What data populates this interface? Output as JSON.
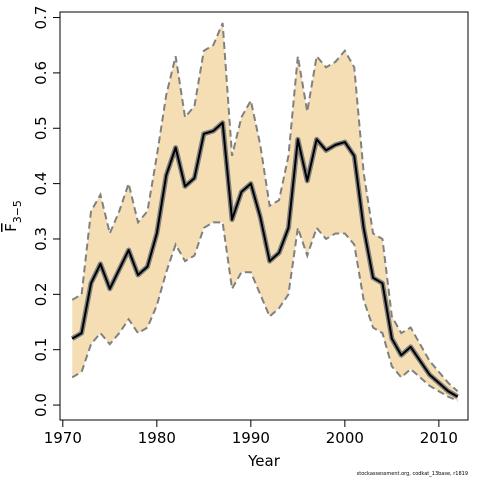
{
  "chart_data": {
    "type": "line",
    "title": "",
    "xlabel": "Year",
    "ylabel": "F",
    "ylabel_subscript": "3−5",
    "xlim": [
      1970,
      2012
    ],
    "ylim": [
      0,
      0.7
    ],
    "x_ticks": [
      "1970",
      "1980",
      "1990",
      "2000",
      "2010"
    ],
    "y_ticks": [
      "0.0",
      "0.1",
      "0.2",
      "0.3",
      "0.4",
      "0.5",
      "0.6",
      "0.7"
    ],
    "grid": false,
    "legend": "none",
    "colors": {
      "band": "#f5deb3",
      "bound_line": "#808080",
      "estimate_line": "#000000"
    },
    "x": [
      1971,
      1972,
      1973,
      1974,
      1975,
      1976,
      1977,
      1978,
      1979,
      1980,
      1981,
      1982,
      1983,
      1984,
      1985,
      1986,
      1987,
      1988,
      1989,
      1990,
      1991,
      1992,
      1993,
      1994,
      1995,
      1996,
      1997,
      1998,
      1999,
      2000,
      2001,
      2002,
      2003,
      2004,
      2005,
      2006,
      2007,
      2008,
      2009,
      2010,
      2011,
      2012
    ],
    "series": [
      {
        "values": [
          0.12,
          0.13,
          0.22,
          0.255,
          0.21,
          0.245,
          0.28,
          0.235,
          0.25,
          0.31,
          0.415,
          0.465,
          0.395,
          0.41,
          0.49,
          0.495,
          0.51,
          0.335,
          0.385,
          0.4,
          0.34,
          0.26,
          0.275,
          0.32,
          0.48,
          0.405,
          0.48,
          0.46,
          0.47,
          0.475,
          0.45,
          0.32,
          0.23,
          0.22,
          0.12,
          0.09,
          0.105,
          0.08,
          0.055,
          0.04,
          0.025,
          0.015
        ]
      },
      {
        "values": [
          0.19,
          0.2,
          0.35,
          0.38,
          0.31,
          0.35,
          0.4,
          0.33,
          0.35,
          0.45,
          0.56,
          0.63,
          0.52,
          0.54,
          0.64,
          0.65,
          0.69,
          0.45,
          0.52,
          0.55,
          0.47,
          0.36,
          0.37,
          0.45,
          0.63,
          0.53,
          0.63,
          0.61,
          0.62,
          0.64,
          0.61,
          0.42,
          0.31,
          0.3,
          0.16,
          0.13,
          0.14,
          0.11,
          0.08,
          0.06,
          0.04,
          0.025
        ]
      },
      {
        "values": [
          0.05,
          0.06,
          0.11,
          0.13,
          0.11,
          0.13,
          0.155,
          0.13,
          0.14,
          0.18,
          0.24,
          0.29,
          0.26,
          0.27,
          0.32,
          0.33,
          0.33,
          0.21,
          0.24,
          0.24,
          0.2,
          0.16,
          0.175,
          0.2,
          0.32,
          0.27,
          0.32,
          0.3,
          0.31,
          0.31,
          0.29,
          0.19,
          0.14,
          0.13,
          0.07,
          0.05,
          0.065,
          0.05,
          0.035,
          0.025,
          0.015,
          0.008
        ]
      }
    ]
  },
  "footer_text": "stockassessment.org, codkat_13base, r1819"
}
